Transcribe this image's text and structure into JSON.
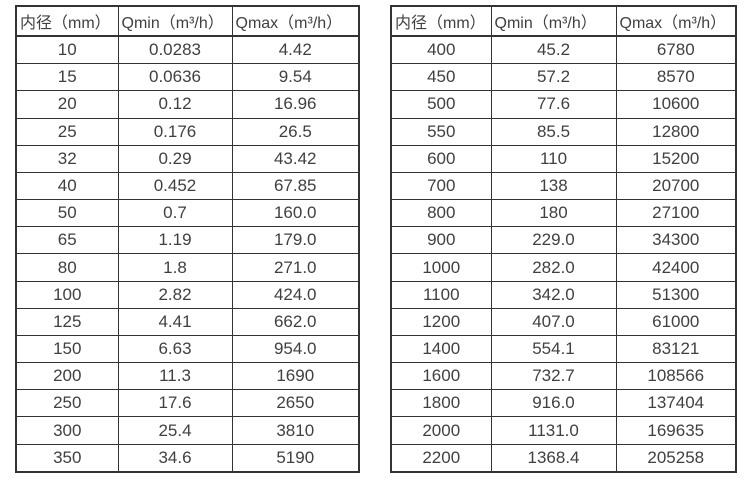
{
  "tables": [
    {
      "name": "flow-rate-table-dn10-350",
      "headers": [
        "内径（mm）",
        "Qmin（m³/h）",
        "Qmax（m³/h）"
      ],
      "rows": [
        [
          "10",
          "0.0283",
          "4.42"
        ],
        [
          "15",
          "0.0636",
          "9.54"
        ],
        [
          "20",
          "0.12",
          "16.96"
        ],
        [
          "25",
          "0.176",
          "26.5"
        ],
        [
          "32",
          "0.29",
          "43.42"
        ],
        [
          "40",
          "0.452",
          "67.85"
        ],
        [
          "50",
          "0.7",
          "160.0"
        ],
        [
          "65",
          "1.19",
          "179.0"
        ],
        [
          "80",
          "1.8",
          "271.0"
        ],
        [
          "100",
          "2.82",
          "424.0"
        ],
        [
          "125",
          "4.41",
          "662.0"
        ],
        [
          "150",
          "6.63",
          "954.0"
        ],
        [
          "200",
          "11.3",
          "1690"
        ],
        [
          "250",
          "17.6",
          "2650"
        ],
        [
          "300",
          "25.4",
          "3810"
        ],
        [
          "350",
          "34.6",
          "5190"
        ]
      ]
    },
    {
      "name": "flow-rate-table-dn400-2200",
      "headers": [
        "内径（mm）",
        "Qmin（m³/h）",
        "Qmax（m³/h）"
      ],
      "rows": [
        [
          "400",
          "45.2",
          "6780"
        ],
        [
          "450",
          "57.2",
          "8570"
        ],
        [
          "500",
          "77.6",
          "10600"
        ],
        [
          "550",
          "85.5",
          "12800"
        ],
        [
          "600",
          "110",
          "15200"
        ],
        [
          "700",
          "138",
          "20700"
        ],
        [
          "800",
          "180",
          "27100"
        ],
        [
          "900",
          "229.0",
          "34300"
        ],
        [
          "1000",
          "282.0",
          "42400"
        ],
        [
          "1100",
          "342.0",
          "51300"
        ],
        [
          "1200",
          "407.0",
          "61000"
        ],
        [
          "1400",
          "554.1",
          "83121"
        ],
        [
          "1600",
          "732.7",
          "108566"
        ],
        [
          "1800",
          "916.0",
          "137404"
        ],
        [
          "2000",
          "1131.0",
          "169635"
        ],
        [
          "2200",
          "1368.4",
          "205258"
        ]
      ]
    }
  ],
  "colors": {
    "border": "#333333",
    "text": "#404040",
    "background": "#ffffff"
  }
}
